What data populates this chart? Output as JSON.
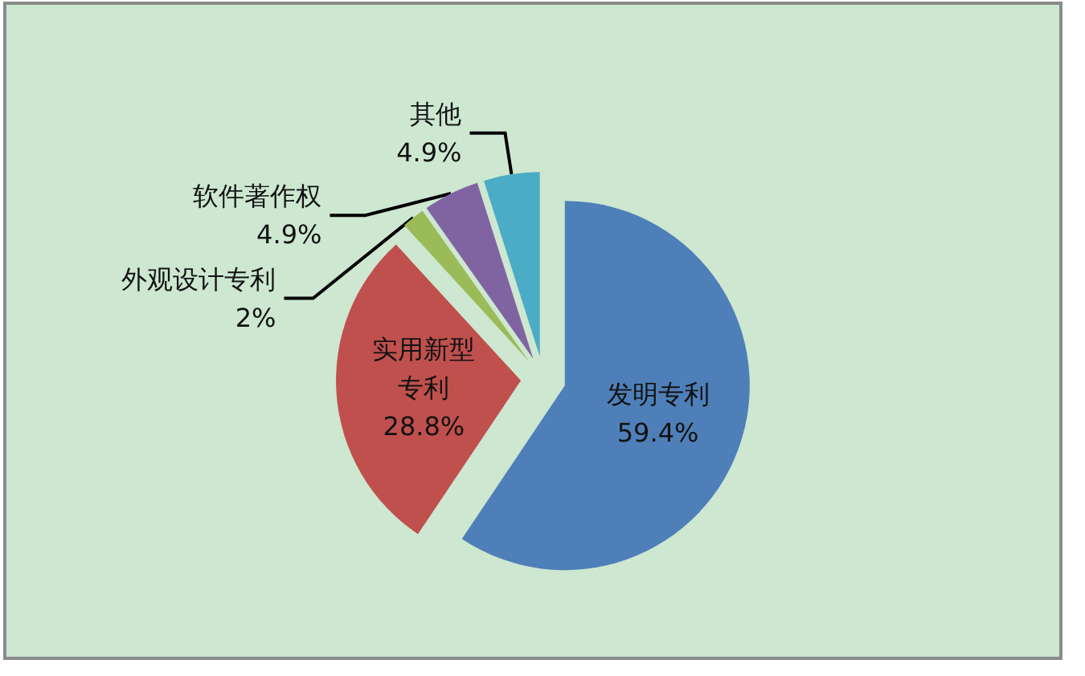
{
  "chart_data": {
    "type": "pie",
    "categories": [
      "发明专利",
      "实用新型专利",
      "外观设计专利",
      "软件著作权",
      "其他"
    ],
    "values": [
      59.4,
      28.8,
      2,
      4.9,
      4.9
    ],
    "value_labels": [
      "59.4%",
      "28.8%",
      "2%",
      "4.9%",
      "4.9%"
    ],
    "colors": [
      "#4f7fb8",
      "#c0504d",
      "#9bbb59",
      "#8064a2",
      "#4bacc6"
    ]
  }
}
